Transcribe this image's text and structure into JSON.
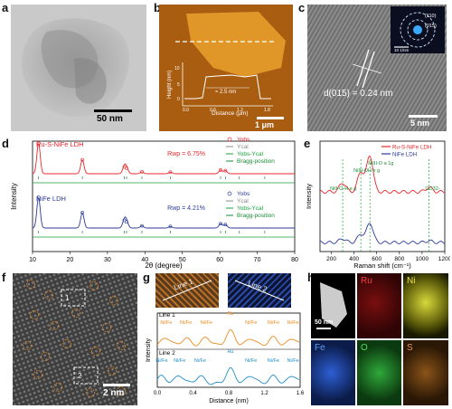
{
  "panels": {
    "a": {
      "label": "a",
      "scale": "50 nm"
    },
    "b": {
      "label": "b",
      "scale": "1 μm",
      "ylabel": "Height (nm)",
      "xlabel": "Distance (μm)",
      "height_note": "≈ 2.5 nm",
      "yticks": [
        "0",
        "5",
        "10"
      ],
      "xticks": [
        "0.0",
        "0.6",
        "1.2",
        "1.8"
      ]
    },
    "c": {
      "label": "c",
      "scale": "5 nm",
      "dspacing": "d(015) = 0.24 nm",
      "inset_scale": "10 1/nm",
      "inset_rings": [
        "(110)",
        "(015)"
      ]
    },
    "d": {
      "label": "d",
      "xlabel": "2θ (degree)",
      "ylabel": "Intensity"
    },
    "e": {
      "label": "e",
      "xlabel": "Raman shift (cm⁻¹)",
      "ylabel": "Intensity",
      "peaks": [
        "Ni^II-O-H e_g",
        "Ni^III-OH e_g",
        "Ni^III-O a_1g",
        "CO3^2-"
      ]
    },
    "f": {
      "label": "f",
      "scale": "2 nm",
      "box1": "1",
      "box2": "2"
    },
    "g": {
      "label": "g",
      "line1": "Line 1",
      "line2": "Line 2",
      "ylabel": "Intensity",
      "xlabel": "Distance (nm)",
      "xticks": [
        "0.0",
        "0.4",
        "0.8",
        "1.2",
        "1.6"
      ],
      "row1_title": "Line 1",
      "row1_labels": [
        "Ni/Fe",
        "Ni/Fe",
        "Ni/Fe",
        "Ru",
        "Ni/Fe",
        "Ni/Fe",
        "Ni/Fe"
      ],
      "row2_title": "Line 2",
      "row2_labels": [
        "Ni/Fe",
        "Ni/Fe",
        "Ni/Fe",
        "Ru",
        "Ni/Fe",
        "Ni/Fe",
        "Ni/Fe"
      ]
    },
    "h": {
      "label": "h",
      "scale": "50 nm",
      "maps": [
        "Ru",
        "Ni",
        "Fe",
        "O",
        "S"
      ]
    }
  },
  "chart_data": [
    {
      "type": "line",
      "panel": "d",
      "title": "",
      "xlabel": "2θ (degree)",
      "ylabel": "Intensity",
      "xlim": [
        10,
        80
      ],
      "xticks": [
        10,
        20,
        30,
        40,
        50,
        60,
        70,
        80
      ],
      "subplots": [
        {
          "name": "Ru-S-NiFe LDH",
          "rwp": "Rwp = 6.75%",
          "legend": [
            "Yobs",
            "Ycal",
            "Yobs-Ycal",
            "Bragg-position"
          ],
          "peaks": [
            {
              "x": 11.6,
              "h": 1.0
            },
            {
              "x": 23.3,
              "h": 0.45
            },
            {
              "x": 34.5,
              "h": 0.22
            },
            {
              "x": 35.1,
              "h": 0.18
            },
            {
              "x": 39.2,
              "h": 0.06
            },
            {
              "x": 46.8,
              "h": 0.05
            },
            {
              "x": 60.2,
              "h": 0.12
            },
            {
              "x": 61.5,
              "h": 0.1
            }
          ],
          "bragg": [
            11.6,
            23.3,
            34.5,
            35.1,
            39.2,
            46.8,
            60.2,
            61.5,
            65.2,
            72.0
          ]
        },
        {
          "name": "NiFe LDH",
          "rwp": "Rwp = 4.21%",
          "legend": [
            "Yobs",
            "Ycal",
            "Yobs-Ycal",
            "Bragg-position"
          ],
          "peaks": [
            {
              "x": 11.6,
              "h": 1.0
            },
            {
              "x": 23.3,
              "h": 0.5
            },
            {
              "x": 34.5,
              "h": 0.25
            },
            {
              "x": 35.1,
              "h": 0.2
            },
            {
              "x": 39.2,
              "h": 0.07
            },
            {
              "x": 46.8,
              "h": 0.05
            },
            {
              "x": 60.2,
              "h": 0.14
            },
            {
              "x": 61.5,
              "h": 0.11
            }
          ],
          "bragg": [
            11.6,
            23.3,
            34.5,
            35.1,
            39.2,
            46.8,
            60.2,
            61.5,
            65.2,
            72.0
          ]
        }
      ]
    },
    {
      "type": "line",
      "panel": "e",
      "title": "",
      "xlabel": "Raman shift (cm⁻¹)",
      "ylabel": "Intensity",
      "xlim": [
        100,
        1200
      ],
      "xticks": [
        200,
        400,
        600,
        800,
        1000,
        1200
      ],
      "marker_lines": [
        300,
        460,
        540,
        1060
      ],
      "series": [
        {
          "name": "Ru-S-NiFe LDH",
          "color": "#e8262b",
          "peaks": [
            {
              "x": 300,
              "h": 0.25
            },
            {
              "x": 460,
              "h": 0.55
            },
            {
              "x": 540,
              "h": 1.0
            },
            {
              "x": 1060,
              "h": 0.12
            }
          ]
        },
        {
          "name": "NiFe LDH",
          "color": "#2b3a9a",
          "peaks": [
            {
              "x": 300,
              "h": 0.12
            },
            {
              "x": 460,
              "h": 0.25
            },
            {
              "x": 540,
              "h": 0.6
            },
            {
              "x": 1060,
              "h": 0.05
            }
          ]
        }
      ]
    },
    {
      "type": "line",
      "panel": "g",
      "xlabel": "Distance (nm)",
      "ylabel": "Intensity",
      "xlim": [
        0,
        1.6
      ],
      "series": [
        {
          "name": "Line 1",
          "color": "#f08a20",
          "peak_x": [
            0.1,
            0.32,
            0.55,
            0.82,
            1.05,
            1.3,
            1.52
          ],
          "peak_h": [
            0.5,
            0.45,
            0.5,
            0.9,
            0.45,
            0.5,
            0.45
          ]
        },
        {
          "name": "Line 2",
          "color": "#1f8fc9",
          "peak_x": [
            0.05,
            0.25,
            0.48,
            0.82,
            1.05,
            1.3,
            1.52
          ],
          "peak_h": [
            0.45,
            0.5,
            0.45,
            0.9,
            0.5,
            0.45,
            0.5
          ]
        }
      ]
    }
  ]
}
